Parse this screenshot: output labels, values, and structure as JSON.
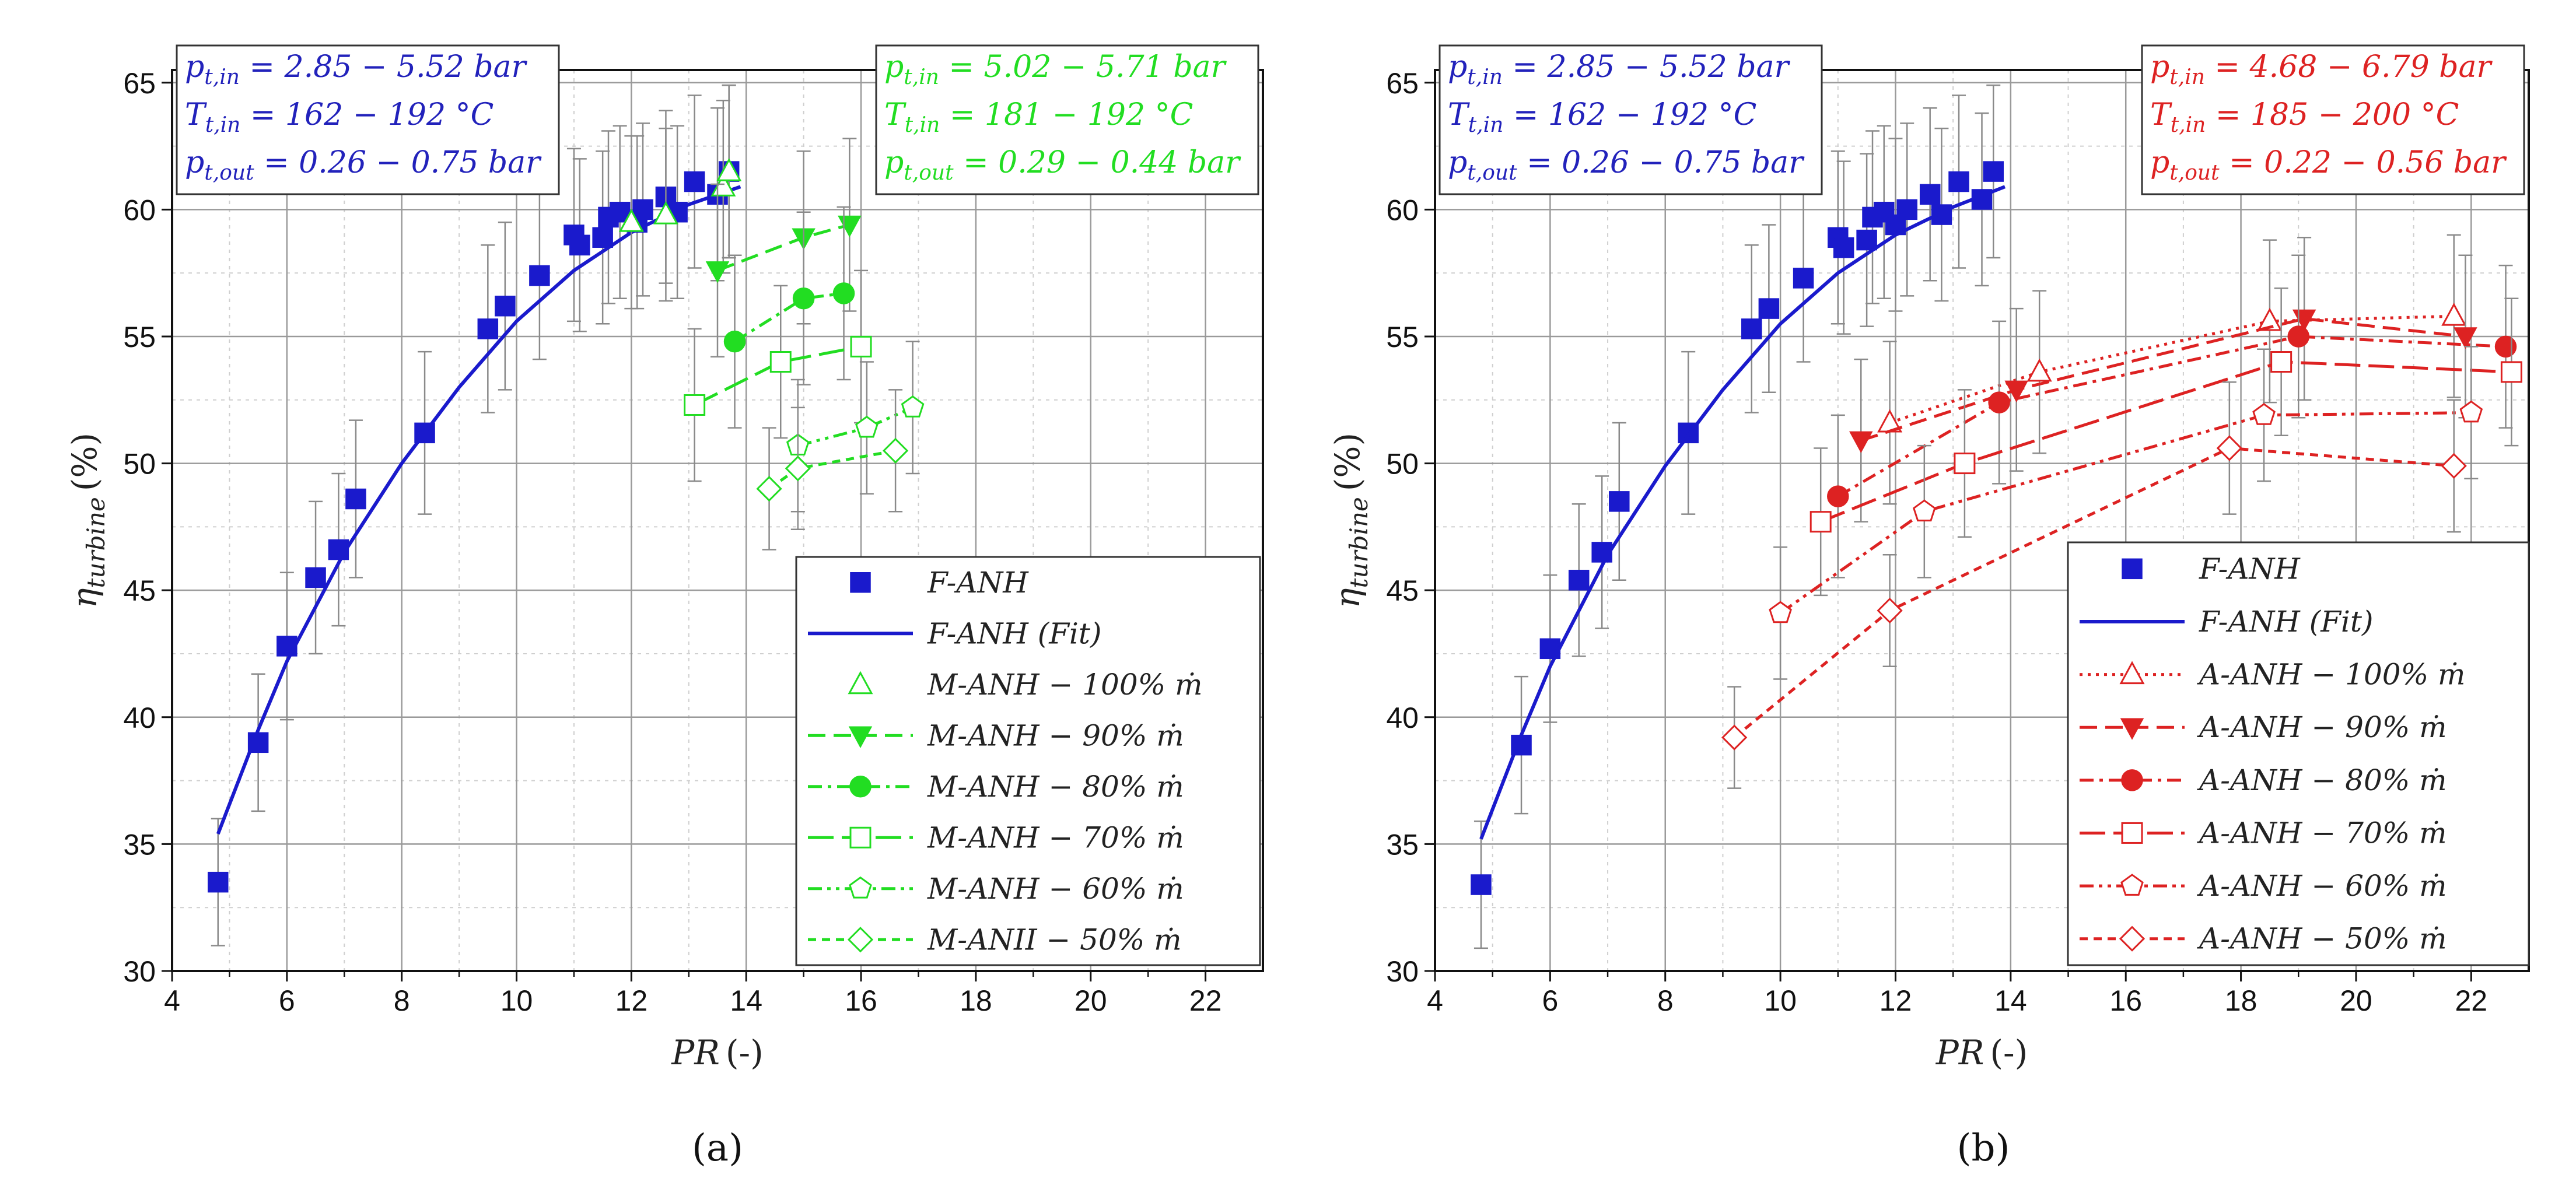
{
  "chart_data": [
    {
      "panel_label": "(a)",
      "type": "scatter",
      "xlabel": "PR (-)",
      "ylabel": "η_turbine (%)",
      "xlim": [
        4,
        23
      ],
      "ylim": [
        30,
        65.5
      ],
      "xticks": [
        4,
        6,
        8,
        10,
        12,
        14,
        16,
        18,
        20,
        22
      ],
      "yticks": [
        30,
        35,
        40,
        45,
        50,
        55,
        60,
        65
      ],
      "grid": true,
      "legend_position": "bottom-right",
      "condition_boxes": [
        {
          "color": "#2222bb",
          "position": "top-left",
          "lines": [
            "p_t,in = 2.85 − 5.52 bar",
            "T_t,in = 162 − 192 °C",
            "p_t,out = 0.26 − 0.75 bar"
          ]
        },
        {
          "color": "#22dd22",
          "position": "top-right",
          "lines": [
            "p_t,in = 5.02 − 5.71 bar",
            "T_t,in = 181 − 192 °C",
            "p_t,out = 0.29 − 0.44 bar"
          ]
        }
      ],
      "series": [
        {
          "name": "F-ANH",
          "color": "#1a1acc",
          "marker": "square-filled",
          "line": "none",
          "points": [
            [
              4.8,
              33.5,
              2.5
            ],
            [
              5.5,
              39.0,
              2.7
            ],
            [
              6.0,
              42.8,
              2.9
            ],
            [
              6.5,
              45.5,
              3.0
            ],
            [
              6.9,
              46.6,
              3.0
            ],
            [
              7.2,
              48.6,
              3.1
            ],
            [
              8.4,
              51.2,
              3.2
            ],
            [
              9.5,
              55.3,
              3.3
            ],
            [
              9.8,
              56.2,
              3.3
            ],
            [
              10.4,
              57.4,
              3.3
            ],
            [
              11.0,
              59.0,
              3.4
            ],
            [
              11.1,
              58.6,
              3.4
            ],
            [
              11.5,
              58.9,
              3.4
            ],
            [
              11.6,
              59.7,
              3.4
            ],
            [
              11.8,
              59.9,
              3.4
            ],
            [
              12.1,
              59.5,
              3.4
            ],
            [
              12.2,
              60.0,
              3.4
            ],
            [
              12.6,
              60.5,
              3.4
            ],
            [
              12.8,
              59.9,
              3.4
            ],
            [
              13.1,
              61.1,
              3.4
            ],
            [
              13.5,
              60.6,
              3.4
            ],
            [
              13.7,
              61.5,
              3.4
            ]
          ]
        },
        {
          "name": "F-ANH (Fit)",
          "color": "#1a1acc",
          "marker": "none",
          "line": "solid",
          "points": [
            [
              4.8,
              35.4
            ],
            [
              5.5,
              39.5
            ],
            [
              6.0,
              42.2
            ],
            [
              7.0,
              46.5
            ],
            [
              8.0,
              50.0
            ],
            [
              9.0,
              53.0
            ],
            [
              10.0,
              55.6
            ],
            [
              11.0,
              57.6
            ],
            [
              12.0,
              59.1
            ],
            [
              13.0,
              60.2
            ],
            [
              13.9,
              60.9
            ]
          ]
        },
        {
          "name": "M-ANH − 100% ṁ",
          "color": "#22dd22",
          "marker": "triangle-open",
          "line": "none",
          "points": [
            [
              12.0,
              59.5,
              3.4
            ],
            [
              12.6,
              59.8,
              3.4
            ],
            [
              13.6,
              60.9,
              3.4
            ],
            [
              13.7,
              61.5,
              3.4
            ]
          ]
        },
        {
          "name": "M-ANH − 90% ṁ",
          "color": "#22dd22",
          "marker": "triangle-down-filled",
          "line": "dash",
          "points": [
            [
              13.5,
              57.6,
              3.4
            ],
            [
              15.0,
              58.9,
              3.4
            ],
            [
              15.8,
              59.4,
              3.4
            ]
          ]
        },
        {
          "name": "M-ANH − 80% ṁ",
          "color": "#22dd22",
          "marker": "circle-filled",
          "line": "dashdot",
          "points": [
            [
              13.8,
              54.8,
              3.4
            ],
            [
              15.0,
              56.5,
              3.4
            ],
            [
              15.7,
              56.7,
              3.4
            ]
          ]
        },
        {
          "name": "M-ANH − 70% ṁ",
          "color": "#22dd22",
          "marker": "square-open",
          "line": "longdash",
          "points": [
            [
              13.1,
              52.3,
              3.0
            ],
            [
              14.6,
              54.0,
              3.0
            ],
            [
              16.0,
              54.6,
              3.0
            ]
          ]
        },
        {
          "name": "M-ANH − 60% ṁ",
          "color": "#22dd22",
          "marker": "pentagon-open",
          "line": "dashdotdot",
          "points": [
            [
              14.9,
              50.7,
              2.6
            ],
            [
              16.1,
              51.4,
              2.6
            ],
            [
              16.9,
              52.2,
              2.6
            ]
          ]
        },
        {
          "name": "M-ANII − 50% ṁ",
          "color": "#22dd22",
          "marker": "diamond-open",
          "line": "shortdash",
          "points": [
            [
              14.4,
              49.0,
              2.4
            ],
            [
              14.9,
              49.8,
              2.4
            ],
            [
              16.6,
              50.5,
              2.4
            ]
          ]
        }
      ]
    },
    {
      "panel_label": "(b)",
      "type": "scatter",
      "xlabel": "PR (-)",
      "ylabel": "η_turbine (%)",
      "xlim": [
        4,
        23
      ],
      "ylim": [
        30,
        65.5
      ],
      "xticks": [
        4,
        6,
        8,
        10,
        12,
        14,
        16,
        18,
        20,
        22
      ],
      "yticks": [
        30,
        35,
        40,
        45,
        50,
        55,
        60,
        65
      ],
      "grid": true,
      "legend_position": "bottom-right",
      "condition_boxes": [
        {
          "color": "#2222bb",
          "position": "top-left",
          "lines": [
            "p_t,in = 2.85 − 5.52 bar",
            "T_t,in = 162 − 192 °C",
            "p_t,out = 0.26 − 0.75 bar"
          ]
        },
        {
          "color": "#dd2222",
          "position": "top-right",
          "lines": [
            "p_t,in = 4.68 − 6.79 bar",
            "T_t,in = 185 − 200 °C",
            "p_t,out = 0.22 − 0.56 bar"
          ]
        }
      ],
      "series": [
        {
          "name": "F-ANH",
          "color": "#1a1acc",
          "marker": "square-filled",
          "line": "none",
          "points": [
            [
              4.8,
              33.4,
              2.5
            ],
            [
              5.5,
              38.9,
              2.7
            ],
            [
              6.0,
              42.7,
              2.9
            ],
            [
              6.5,
              45.4,
              3.0
            ],
            [
              6.9,
              46.5,
              3.0
            ],
            [
              7.2,
              48.5,
              3.1
            ],
            [
              8.4,
              51.2,
              3.2
            ],
            [
              9.5,
              55.3,
              3.3
            ],
            [
              9.8,
              56.1,
              3.3
            ],
            [
              10.4,
              57.3,
              3.3
            ],
            [
              11.0,
              58.9,
              3.4
            ],
            [
              11.1,
              58.5,
              3.4
            ],
            [
              11.5,
              58.8,
              3.4
            ],
            [
              11.6,
              59.7,
              3.4
            ],
            [
              11.8,
              59.9,
              3.4
            ],
            [
              12.0,
              59.4,
              3.4
            ],
            [
              12.2,
              60.0,
              3.4
            ],
            [
              12.6,
              60.6,
              3.4
            ],
            [
              12.8,
              59.8,
              3.4
            ],
            [
              13.1,
              61.1,
              3.4
            ],
            [
              13.5,
              60.4,
              3.4
            ],
            [
              13.7,
              61.5,
              3.4
            ]
          ]
        },
        {
          "name": "F-ANH (Fit)",
          "color": "#1a1acc",
          "marker": "none",
          "line": "solid",
          "points": [
            [
              4.8,
              35.2
            ],
            [
              5.5,
              39.3
            ],
            [
              6.0,
              42.0
            ],
            [
              7.0,
              46.4
            ],
            [
              8.0,
              49.9
            ],
            [
              9.0,
              52.9
            ],
            [
              10.0,
              55.5
            ],
            [
              11.0,
              57.5
            ],
            [
              12.0,
              59.0
            ],
            [
              13.0,
              60.1
            ],
            [
              13.9,
              60.9
            ]
          ]
        },
        {
          "name": "A-ANH − 100% ṁ",
          "color": "#dd2222",
          "marker": "triangle-open",
          "line": "dot",
          "points": [
            [
              11.9,
              51.6,
              3.2
            ],
            [
              14.5,
              53.6,
              3.2
            ],
            [
              18.5,
              55.6,
              3.2
            ],
            [
              21.7,
              55.8,
              3.2
            ]
          ]
        },
        {
          "name": "A-ANH − 90% ṁ",
          "color": "#dd2222",
          "marker": "triangle-down-filled",
          "line": "dash",
          "points": [
            [
              11.4,
              50.9,
              3.2
            ],
            [
              14.1,
              52.9,
              3.2
            ],
            [
              19.1,
              55.7,
              3.2
            ],
            [
              21.9,
              55.0,
              3.2
            ]
          ]
        },
        {
          "name": "A-ANH − 80% ṁ",
          "color": "#dd2222",
          "marker": "circle-filled",
          "line": "dashdot",
          "points": [
            [
              11.0,
              48.7,
              3.2
            ],
            [
              13.8,
              52.4,
              3.2
            ],
            [
              19.0,
              55.0,
              3.2
            ],
            [
              22.6,
              54.6,
              3.2
            ]
          ]
        },
        {
          "name": "A-ANH − 70% ṁ",
          "color": "#dd2222",
          "marker": "square-open",
          "line": "longdash",
          "points": [
            [
              10.7,
              47.7,
              2.9
            ],
            [
              13.2,
              50.0,
              2.9
            ],
            [
              18.7,
              54.0,
              2.9
            ],
            [
              22.7,
              53.6,
              2.9
            ]
          ]
        },
        {
          "name": "A-ANH − 60% ṁ",
          "color": "#dd2222",
          "marker": "pentagon-open",
          "line": "dashdotdot",
          "points": [
            [
              10.0,
              44.1,
              2.6
            ],
            [
              12.5,
              48.1,
              2.6
            ],
            [
              18.4,
              51.9,
              2.6
            ],
            [
              22.0,
              52.0,
              2.6
            ]
          ]
        },
        {
          "name": "A-ANH − 50% ṁ",
          "color": "#dd2222",
          "marker": "diamond-open",
          "line": "shortdash",
          "points": [
            [
              9.2,
              39.2,
              2.0
            ],
            [
              11.9,
              44.2,
              2.2
            ],
            [
              17.8,
              50.6,
              2.6
            ],
            [
              21.7,
              49.9,
              2.6
            ]
          ]
        }
      ]
    }
  ]
}
